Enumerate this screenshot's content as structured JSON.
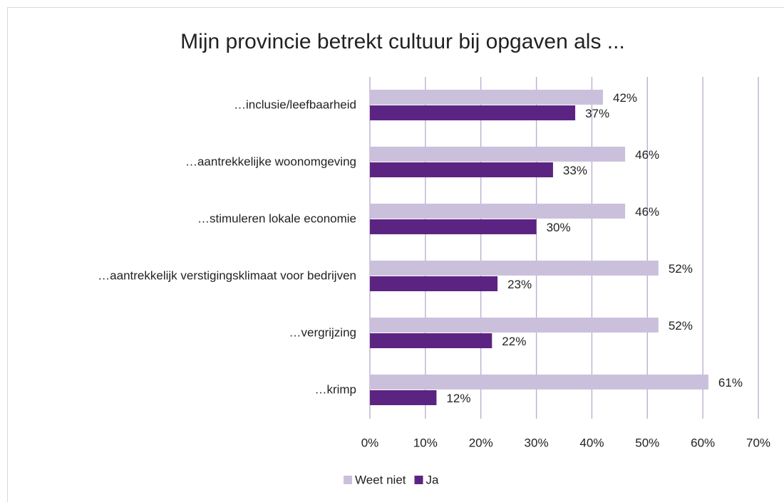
{
  "chart_data": {
    "type": "hbar",
    "title": "Mijn provincie betrekt cultuur bij opgaven als ...",
    "categories": [
      "…inclusie/leefbaarheid",
      "…aantrekkelijke woonomgeving",
      "…stimuleren lokale economie",
      "…aantrekkelijk verstigingsklimaat voor bedrijven",
      "…vergrijzing",
      "…krimp"
    ],
    "series": [
      {
        "name": "Weet niet",
        "color": "#cbc0dc",
        "values": [
          42,
          46,
          46,
          52,
          52,
          61
        ],
        "value_labels": [
          "42%",
          "46%",
          "46%",
          "52%",
          "52%",
          "61%"
        ]
      },
      {
        "name": "Ja",
        "color": "#5c2482",
        "values": [
          37,
          33,
          30,
          23,
          22,
          12
        ],
        "value_labels": [
          "37%",
          "33%",
          "30%",
          "23%",
          "22%",
          "12%"
        ]
      }
    ],
    "xlim": [
      0,
      70
    ],
    "xticks": [
      {
        "value": 0,
        "label": "0%"
      },
      {
        "value": 10,
        "label": "10%"
      },
      {
        "value": 20,
        "label": "20%"
      },
      {
        "value": 30,
        "label": "30%"
      },
      {
        "value": 40,
        "label": "40%"
      },
      {
        "value": 50,
        "label": "50%"
      },
      {
        "value": 60,
        "label": "60%"
      },
      {
        "value": 70,
        "label": "70%"
      }
    ],
    "grid": true,
    "legend": "bottom"
  }
}
